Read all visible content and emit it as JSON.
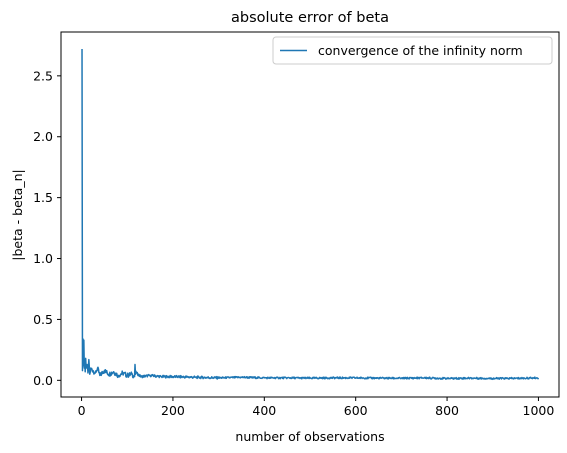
{
  "chart_data": {
    "type": "line",
    "title": "absolute error of beta",
    "xlabel": "number of observations",
    "ylabel": "|beta - beta_n|",
    "xlim": [
      -45,
      1045
    ],
    "ylim": [
      -0.137,
      2.86
    ],
    "xticks": [
      0,
      200,
      400,
      600,
      800,
      1000
    ],
    "xtick_labels": [
      "0",
      "200",
      "400",
      "600",
      "800",
      "1000"
    ],
    "yticks": [
      0.0,
      0.5,
      1.0,
      1.5,
      2.0,
      2.5
    ],
    "ytick_labels": [
      "0.0",
      "0.5",
      "1.0",
      "1.5",
      "2.0",
      "2.5"
    ],
    "grid": false,
    "legend_position": "top-right",
    "series": [
      {
        "name": "convergence of the infinity norm",
        "color": "#1f77b4",
        "sampled_points": {
          "x": [
            1,
            2,
            3,
            4,
            5,
            6,
            7,
            8,
            9,
            10,
            12,
            14,
            16,
            18,
            20,
            25,
            30,
            35,
            40,
            50,
            60,
            70,
            80,
            90,
            100,
            110,
            116,
            117,
            118,
            120,
            130,
            150,
            175,
            200,
            250,
            300,
            350,
            400,
            450,
            500,
            550,
            600,
            650,
            700,
            750,
            800,
            850,
            900,
            950,
            1000
          ],
          "y": [
            2.72,
            0.08,
            0.34,
            0.12,
            0.33,
            0.1,
            0.15,
            0.07,
            0.18,
            0.1,
            0.13,
            0.06,
            0.17,
            0.05,
            0.1,
            0.08,
            0.06,
            0.1,
            0.04,
            0.08,
            0.05,
            0.07,
            0.04,
            0.06,
            0.04,
            0.05,
            0.03,
            0.13,
            0.05,
            0.06,
            0.03,
            0.04,
            0.03,
            0.03,
            0.025,
            0.02,
            0.025,
            0.02,
            0.02,
            0.018,
            0.02,
            0.02,
            0.018,
            0.017,
            0.02,
            0.015,
            0.018,
            0.015,
            0.016,
            0.02
          ]
        }
      }
    ]
  }
}
